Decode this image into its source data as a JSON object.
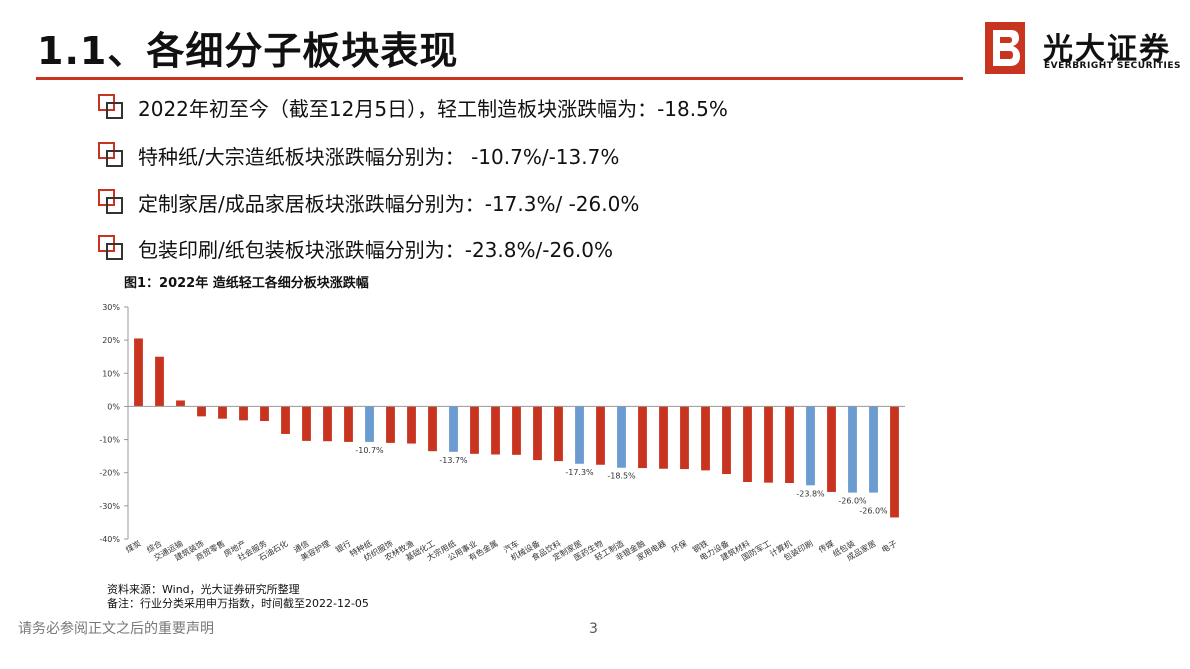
{
  "header": {
    "title": "1.1、各细分子板块表现",
    "logo_cn": "光大证券",
    "logo_en": "EVERBRIGHT SECURITIES",
    "brand_color": "#c8341f"
  },
  "bullets": [
    "2022年初至今（截至12月5日），轻工制造板块涨跌幅为：-18.5%",
    "特种纸/大宗造纸板块涨跌幅分别为： -10.7%/-13.7%",
    "定制家居/成品家居板块涨跌幅分别为：-17.3%/ -26.0%",
    "包装印刷/纸包装板块涨跌幅分别为：-23.8%/-26.0%"
  ],
  "figure_title": "图1：2022年 造纸轻工各细分板块涨跌幅",
  "chart_data": {
    "type": "bar",
    "categories": [
      "煤炭",
      "综合",
      "交通运输",
      "建筑装饰",
      "商贸零售",
      "房地产",
      "社会服务",
      "石油石化",
      "通信",
      "美容护理",
      "银行",
      "特种纸",
      "纺织服饰",
      "农林牧渔",
      "基础化工",
      "大宗用纸",
      "公用事业",
      "有色金属",
      "汽车",
      "机械设备",
      "食品饮料",
      "定制家居",
      "医药生物",
      "轻工制造",
      "非银金融",
      "家用电器",
      "环保",
      "钢铁",
      "电力设备",
      "建筑材料",
      "国防军工",
      "计算机",
      "包装印刷",
      "传媒",
      "纸包装",
      "成品家居",
      "电子"
    ],
    "values": [
      20.5,
      15.0,
      1.8,
      -3.0,
      -3.7,
      -4.2,
      -4.4,
      -8.3,
      -10.4,
      -10.5,
      -10.7,
      -10.7,
      -11.0,
      -11.2,
      -13.5,
      -13.7,
      -14.3,
      -14.5,
      -14.6,
      -16.2,
      -16.5,
      -17.3,
      -17.6,
      -18.5,
      -18.6,
      -18.8,
      -18.9,
      -19.3,
      -20.4,
      -22.8,
      -23.0,
      -23.1,
      -23.8,
      -25.8,
      -26.0,
      -26.0,
      -33.5
    ],
    "highlighted": [
      "特种纸",
      "大宗用纸",
      "定制家居",
      "轻工制造",
      "包装印刷",
      "纸包装",
      "成品家居"
    ],
    "data_labels": [
      {
        "category": "特种纸",
        "text": "-10.7%"
      },
      {
        "category": "大宗用纸",
        "text": "-13.7%"
      },
      {
        "category": "定制家居",
        "text": "-17.3%"
      },
      {
        "category": "轻工制造",
        "text": "-18.5%"
      },
      {
        "category": "包装印刷",
        "text": "-23.8%"
      },
      {
        "category": "纸包装",
        "text": "-26.0%"
      },
      {
        "category": "成品家居",
        "text": "-26.0%"
      }
    ],
    "ylim": [
      -40,
      30
    ],
    "yticks": [
      "30%",
      "20%",
      "10%",
      "0%",
      "-10%",
      "-20%",
      "-30%",
      "-40%"
    ],
    "ytick_values": [
      30,
      20,
      10,
      0,
      -10,
      -20,
      -30,
      -40
    ],
    "bar_color": "#c8341f",
    "highlight_color": "#6a9bd1",
    "grid": false
  },
  "source_note": "资料来源：Wind，光大证券研究所整理",
  "remark_note": "备注：行业分类采用申万指数，时间截至2022-12-05",
  "footer": {
    "disclaimer": "请务必参阅正文之后的重要声明",
    "page_number": "3"
  }
}
